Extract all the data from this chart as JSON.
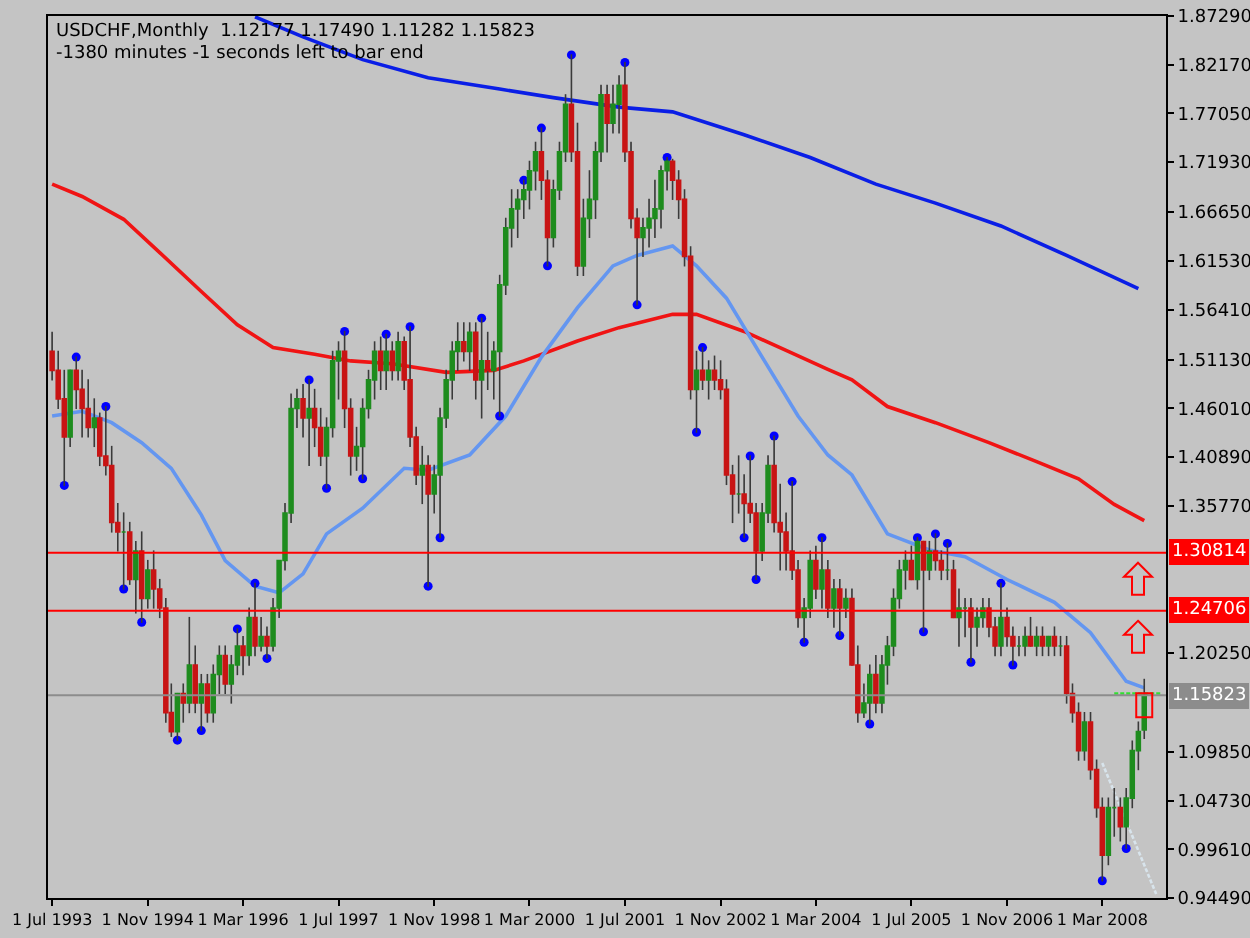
{
  "chart_data": {
    "type": "candlestick",
    "title": "USDCHF,Monthly  1.12177 1.17490 1.11282 1.15823",
    "subtitle": "-1380 minutes -1 seconds left to bar end",
    "x": [
      "1993-07",
      "1993-08",
      "1993-09",
      "1993-10",
      "1993-11",
      "1993-12",
      "1994-01",
      "1994-02",
      "1994-03",
      "1994-04",
      "1994-05",
      "1994-06",
      "1994-07",
      "1994-08",
      "1994-09",
      "1994-10",
      "1994-11",
      "1994-12",
      "1995-01",
      "1995-02",
      "1995-03",
      "1995-04",
      "1995-05",
      "1995-06",
      "1995-07",
      "1995-08",
      "1995-09",
      "1995-10",
      "1995-11",
      "1995-12",
      "1996-01",
      "1996-02",
      "1996-03",
      "1996-04",
      "1996-05",
      "1996-06",
      "1996-07",
      "1996-08",
      "1996-09",
      "1996-10",
      "1996-11",
      "1996-12",
      "1997-01",
      "1997-02",
      "1997-03",
      "1997-04",
      "1997-05",
      "1997-06",
      "1997-07",
      "1997-08",
      "1997-09",
      "1997-10",
      "1997-11",
      "1997-12",
      "1998-01",
      "1998-02",
      "1998-03",
      "1998-04",
      "1998-05",
      "1998-06",
      "1998-07",
      "1998-08",
      "1998-09",
      "1998-10",
      "1998-11",
      "1998-12",
      "1999-01",
      "1999-02",
      "1999-03",
      "1999-04",
      "1999-05",
      "1999-06",
      "1999-07",
      "1999-08",
      "1999-09",
      "1999-10",
      "1999-11",
      "1999-12",
      "2000-01",
      "2000-02",
      "2000-03",
      "2000-04",
      "2000-05",
      "2000-06",
      "2000-07",
      "2000-08",
      "2000-09",
      "2000-10",
      "2000-11",
      "2000-12",
      "2001-01",
      "2001-02",
      "2001-03",
      "2001-04",
      "2001-05",
      "2001-06",
      "2001-07",
      "2001-08",
      "2001-09",
      "2001-10",
      "2001-11",
      "2001-12",
      "2002-01",
      "2002-02",
      "2002-03",
      "2002-04",
      "2002-05",
      "2002-06",
      "2002-07",
      "2002-08",
      "2002-09",
      "2002-10",
      "2002-11",
      "2002-12",
      "2003-01",
      "2003-02",
      "2003-03",
      "2003-04",
      "2003-05",
      "2003-06",
      "2003-07",
      "2003-08",
      "2003-09",
      "2003-10",
      "2003-11",
      "2003-12",
      "2004-01",
      "2004-02",
      "2004-03",
      "2004-04",
      "2004-05",
      "2004-06",
      "2004-07",
      "2004-08",
      "2004-09",
      "2004-10",
      "2004-11",
      "2004-12",
      "2005-01",
      "2005-02",
      "2005-03",
      "2005-04",
      "2005-05",
      "2005-06",
      "2005-07",
      "2005-08",
      "2005-09",
      "2005-10",
      "2005-11",
      "2005-12",
      "2006-01",
      "2006-02",
      "2006-03",
      "2006-04",
      "2006-05",
      "2006-06",
      "2006-07",
      "2006-08",
      "2006-09",
      "2006-10",
      "2006-11",
      "2006-12",
      "2007-01",
      "2007-02",
      "2007-03",
      "2007-04",
      "2007-05",
      "2007-06",
      "2007-07",
      "2007-08",
      "2007-09",
      "2007-10",
      "2007-11",
      "2007-12",
      "2008-01",
      "2008-02",
      "2008-03",
      "2008-04",
      "2008-05",
      "2008-06",
      "2008-07",
      "2008-08",
      "2008-09",
      "2008-10"
    ],
    "ohlc": [
      [
        1.52,
        1.54,
        1.49,
        1.5
      ],
      [
        1.5,
        1.52,
        1.46,
        1.47
      ],
      [
        1.47,
        1.5,
        1.379,
        1.43
      ],
      [
        1.43,
        1.5,
        1.42,
        1.5
      ],
      [
        1.5,
        1.514,
        1.46,
        1.48
      ],
      [
        1.48,
        1.5,
        1.43,
        1.46
      ],
      [
        1.46,
        1.49,
        1.43,
        1.44
      ],
      [
        1.44,
        1.47,
        1.42,
        1.45
      ],
      [
        1.45,
        1.455,
        1.4,
        1.41
      ],
      [
        1.41,
        1.462,
        1.39,
        1.4
      ],
      [
        1.4,
        1.42,
        1.33,
        1.34
      ],
      [
        1.34,
        1.36,
        1.31,
        1.33
      ],
      [
        1.33,
        1.35,
        1.27,
        1.33
      ],
      [
        1.33,
        1.34,
        1.275,
        1.28
      ],
      [
        1.28,
        1.32,
        1.245,
        1.31
      ],
      [
        1.31,
        1.33,
        1.235,
        1.26
      ],
      [
        1.26,
        1.3,
        1.25,
        1.29
      ],
      [
        1.29,
        1.31,
        1.25,
        1.27
      ],
      [
        1.27,
        1.28,
        1.24,
        1.25
      ],
      [
        1.25,
        1.26,
        1.13,
        1.14
      ],
      [
        1.14,
        1.17,
        1.115,
        1.12
      ],
      [
        1.12,
        1.16,
        1.111,
        1.16
      ],
      [
        1.16,
        1.17,
        1.13,
        1.15
      ],
      [
        1.15,
        1.24,
        1.14,
        1.19
      ],
      [
        1.19,
        1.21,
        1.14,
        1.15
      ],
      [
        1.15,
        1.18,
        1.121,
        1.17
      ],
      [
        1.17,
        1.18,
        1.13,
        1.14
      ],
      [
        1.14,
        1.19,
        1.13,
        1.18
      ],
      [
        1.18,
        1.21,
        1.16,
        1.2
      ],
      [
        1.2,
        1.21,
        1.16,
        1.17
      ],
      [
        1.17,
        1.2,
        1.15,
        1.19
      ],
      [
        1.19,
        1.228,
        1.18,
        1.21
      ],
      [
        1.21,
        1.22,
        1.18,
        1.2
      ],
      [
        1.2,
        1.25,
        1.19,
        1.24
      ],
      [
        1.24,
        1.276,
        1.2,
        1.21
      ],
      [
        1.21,
        1.24,
        1.205,
        1.22
      ],
      [
        1.22,
        1.23,
        1.197,
        1.21
      ],
      [
        1.21,
        1.26,
        1.205,
        1.25
      ],
      [
        1.25,
        1.3,
        1.24,
        1.3
      ],
      [
        1.3,
        1.36,
        1.29,
        1.35
      ],
      [
        1.35,
        1.475,
        1.34,
        1.46
      ],
      [
        1.46,
        1.48,
        1.44,
        1.47
      ],
      [
        1.47,
        1.485,
        1.43,
        1.45
      ],
      [
        1.45,
        1.49,
        1.4,
        1.46
      ],
      [
        1.46,
        1.48,
        1.42,
        1.44
      ],
      [
        1.44,
        1.46,
        1.4,
        1.41
      ],
      [
        1.41,
        1.45,
        1.376,
        1.44
      ],
      [
        1.44,
        1.52,
        1.43,
        1.51
      ],
      [
        1.51,
        1.53,
        1.47,
        1.52
      ],
      [
        1.52,
        1.541,
        1.44,
        1.46
      ],
      [
        1.46,
        1.47,
        1.39,
        1.41
      ],
      [
        1.41,
        1.44,
        1.395,
        1.42
      ],
      [
        1.42,
        1.47,
        1.386,
        1.46
      ],
      [
        1.46,
        1.5,
        1.45,
        1.49
      ],
      [
        1.49,
        1.53,
        1.47,
        1.52
      ],
      [
        1.52,
        1.535,
        1.48,
        1.5
      ],
      [
        1.5,
        1.538,
        1.48,
        1.52
      ],
      [
        1.52,
        1.53,
        1.49,
        1.5
      ],
      [
        1.5,
        1.54,
        1.49,
        1.53
      ],
      [
        1.53,
        1.535,
        1.48,
        1.49
      ],
      [
        1.49,
        1.546,
        1.42,
        1.43
      ],
      [
        1.43,
        1.44,
        1.38,
        1.39
      ],
      [
        1.39,
        1.42,
        1.36,
        1.4
      ],
      [
        1.4,
        1.41,
        1.273,
        1.37
      ],
      [
        1.37,
        1.4,
        1.35,
        1.39
      ],
      [
        1.39,
        1.46,
        1.324,
        1.45
      ],
      [
        1.45,
        1.5,
        1.44,
        1.49
      ],
      [
        1.49,
        1.53,
        1.47,
        1.52
      ],
      [
        1.52,
        1.55,
        1.5,
        1.53
      ],
      [
        1.53,
        1.55,
        1.51,
        1.52
      ],
      [
        1.52,
        1.55,
        1.5,
        1.54
      ],
      [
        1.54,
        1.55,
        1.47,
        1.49
      ],
      [
        1.49,
        1.555,
        1.45,
        1.51
      ],
      [
        1.51,
        1.54,
        1.48,
        1.5
      ],
      [
        1.5,
        1.53,
        1.47,
        1.52
      ],
      [
        1.52,
        1.6,
        1.452,
        1.59
      ],
      [
        1.59,
        1.66,
        1.58,
        1.65
      ],
      [
        1.65,
        1.69,
        1.63,
        1.67
      ],
      [
        1.67,
        1.69,
        1.64,
        1.68
      ],
      [
        1.68,
        1.7,
        1.66,
        1.69
      ],
      [
        1.69,
        1.72,
        1.67,
        1.71
      ],
      [
        1.71,
        1.74,
        1.69,
        1.73
      ],
      [
        1.73,
        1.755,
        1.68,
        1.7
      ],
      [
        1.7,
        1.71,
        1.61,
        1.64
      ],
      [
        1.64,
        1.7,
        1.63,
        1.69
      ],
      [
        1.69,
        1.74,
        1.68,
        1.73
      ],
      [
        1.73,
        1.79,
        1.72,
        1.78
      ],
      [
        1.78,
        1.832,
        1.72,
        1.73
      ],
      [
        1.73,
        1.76,
        1.6,
        1.61
      ],
      [
        1.61,
        1.68,
        1.6,
        1.66
      ],
      [
        1.66,
        1.71,
        1.64,
        1.68
      ],
      [
        1.68,
        1.74,
        1.66,
        1.73
      ],
      [
        1.73,
        1.8,
        1.72,
        1.79
      ],
      [
        1.79,
        1.8,
        1.73,
        1.76
      ],
      [
        1.76,
        1.8,
        1.75,
        1.78
      ],
      [
        1.78,
        1.81,
        1.75,
        1.8
      ],
      [
        1.8,
        1.824,
        1.72,
        1.73
      ],
      [
        1.73,
        1.74,
        1.65,
        1.66
      ],
      [
        1.66,
        1.67,
        1.569,
        1.64
      ],
      [
        1.64,
        1.66,
        1.62,
        1.65
      ],
      [
        1.65,
        1.68,
        1.63,
        1.66
      ],
      [
        1.66,
        1.7,
        1.64,
        1.67
      ],
      [
        1.67,
        1.715,
        1.65,
        1.71
      ],
      [
        1.71,
        1.724,
        1.69,
        1.72
      ],
      [
        1.72,
        1.722,
        1.68,
        1.7
      ],
      [
        1.7,
        1.71,
        1.66,
        1.68
      ],
      [
        1.68,
        1.69,
        1.61,
        1.62
      ],
      [
        1.62,
        1.63,
        1.47,
        1.48
      ],
      [
        1.48,
        1.52,
        1.435,
        1.5
      ],
      [
        1.5,
        1.524,
        1.48,
        1.49
      ],
      [
        1.49,
        1.51,
        1.47,
        1.5
      ],
      [
        1.5,
        1.515,
        1.48,
        1.49
      ],
      [
        1.49,
        1.51,
        1.47,
        1.48
      ],
      [
        1.48,
        1.49,
        1.38,
        1.39
      ],
      [
        1.39,
        1.4,
        1.34,
        1.37
      ],
      [
        1.37,
        1.41,
        1.35,
        1.37
      ],
      [
        1.37,
        1.39,
        1.324,
        1.36
      ],
      [
        1.36,
        1.41,
        1.34,
        1.35
      ],
      [
        1.35,
        1.36,
        1.28,
        1.31
      ],
      [
        1.31,
        1.36,
        1.3,
        1.35
      ],
      [
        1.35,
        1.41,
        1.34,
        1.4
      ],
      [
        1.4,
        1.431,
        1.33,
        1.34
      ],
      [
        1.34,
        1.38,
        1.29,
        1.33
      ],
      [
        1.33,
        1.35,
        1.29,
        1.31
      ],
      [
        1.31,
        1.383,
        1.28,
        1.29
      ],
      [
        1.29,
        1.3,
        1.23,
        1.24
      ],
      [
        1.24,
        1.26,
        1.214,
        1.25
      ],
      [
        1.25,
        1.31,
        1.24,
        1.3
      ],
      [
        1.3,
        1.315,
        1.26,
        1.27
      ],
      [
        1.27,
        1.324,
        1.25,
        1.29
      ],
      [
        1.29,
        1.3,
        1.24,
        1.25
      ],
      [
        1.25,
        1.28,
        1.23,
        1.27
      ],
      [
        1.27,
        1.28,
        1.221,
        1.25
      ],
      [
        1.25,
        1.27,
        1.24,
        1.26
      ],
      [
        1.26,
        1.27,
        1.19,
        1.19
      ],
      [
        1.19,
        1.21,
        1.13,
        1.14
      ],
      [
        1.14,
        1.17,
        1.135,
        1.15
      ],
      [
        1.15,
        1.19,
        1.128,
        1.18
      ],
      [
        1.18,
        1.2,
        1.14,
        1.15
      ],
      [
        1.15,
        1.2,
        1.14,
        1.19
      ],
      [
        1.19,
        1.22,
        1.17,
        1.21
      ],
      [
        1.21,
        1.27,
        1.2,
        1.26
      ],
      [
        1.26,
        1.3,
        1.25,
        1.29
      ],
      [
        1.29,
        1.31,
        1.27,
        1.3
      ],
      [
        1.3,
        1.315,
        1.28,
        1.28
      ],
      [
        1.28,
        1.324,
        1.27,
        1.32
      ],
      [
        1.32,
        1.32,
        1.225,
        1.29
      ],
      [
        1.29,
        1.32,
        1.28,
        1.31
      ],
      [
        1.31,
        1.328,
        1.29,
        1.3
      ],
      [
        1.3,
        1.31,
        1.28,
        1.29
      ],
      [
        1.29,
        1.318,
        1.28,
        1.29
      ],
      [
        1.29,
        1.3,
        1.24,
        1.24
      ],
      [
        1.24,
        1.27,
        1.21,
        1.25
      ],
      [
        1.25,
        1.26,
        1.22,
        1.25
      ],
      [
        1.25,
        1.26,
        1.193,
        1.23
      ],
      [
        1.23,
        1.25,
        1.21,
        1.24
      ],
      [
        1.24,
        1.26,
        1.23,
        1.25
      ],
      [
        1.25,
        1.26,
        1.22,
        1.23
      ],
      [
        1.23,
        1.24,
        1.2,
        1.21
      ],
      [
        1.21,
        1.276,
        1.2,
        1.24
      ],
      [
        1.24,
        1.25,
        1.21,
        1.22
      ],
      [
        1.22,
        1.23,
        1.19,
        1.21
      ],
      [
        1.21,
        1.22,
        1.2,
        1.21
      ],
      [
        1.21,
        1.23,
        1.2,
        1.22
      ],
      [
        1.22,
        1.24,
        1.21,
        1.21
      ],
      [
        1.21,
        1.23,
        1.2,
        1.22
      ],
      [
        1.22,
        1.23,
        1.2,
        1.21
      ],
      [
        1.21,
        1.22,
        1.2,
        1.22
      ],
      [
        1.22,
        1.23,
        1.2,
        1.21
      ],
      [
        1.21,
        1.22,
        1.2,
        1.21
      ],
      [
        1.21,
        1.22,
        1.15,
        1.16
      ],
      [
        1.16,
        1.17,
        1.13,
        1.14
      ],
      [
        1.14,
        1.15,
        1.09,
        1.1
      ],
      [
        1.1,
        1.14,
        1.09,
        1.13
      ],
      [
        1.13,
        1.14,
        1.07,
        1.08
      ],
      [
        1.08,
        1.09,
        1.03,
        1.04
      ],
      [
        1.04,
        1.05,
        0.963,
        0.99
      ],
      [
        0.99,
        1.05,
        0.98,
        1.04
      ],
      [
        1.04,
        1.06,
        1.01,
        1.04
      ],
      [
        1.04,
        1.05,
        1.005,
        1.02
      ],
      [
        1.02,
        1.06,
        0.997,
        1.05
      ],
      [
        1.05,
        1.11,
        1.04,
        1.1
      ],
      [
        1.1,
        1.13,
        1.08,
        1.12
      ],
      [
        1.12177,
        1.1749,
        1.11282,
        1.15823
      ]
    ],
    "colors": [
      "#c81414",
      "#c81414",
      "#c81414",
      "#1e8c1e",
      "#c81414",
      "#c81414",
      "#c81414",
      "#1e8c1e",
      "#c81414",
      "#c81414",
      "#c81414",
      "#c81414",
      "#1e8c1e",
      "#c81414",
      "#1e8c1e",
      "#c81414",
      "#1e8c1e",
      "#c81414",
      "#c81414",
      "#c81414",
      "#c81414",
      "#1e8c1e",
      "#c81414",
      "#1e8c1e",
      "#c81414",
      "#1e8c1e",
      "#c81414",
      "#1e8c1e",
      "#1e8c1e",
      "#c81414",
      "#1e8c1e",
      "#1e8c1e",
      "#c81414",
      "#1e8c1e",
      "#c81414",
      "#1e8c1e",
      "#c81414",
      "#1e8c1e",
      "#1e8c1e",
      "#1e8c1e",
      "#1e8c1e",
      "#1e8c1e",
      "#c81414",
      "#1e8c1e",
      "#c81414",
      "#c81414",
      "#1e8c1e",
      "#1e8c1e",
      "#1e8c1e",
      "#c81414",
      "#c81414",
      "#1e8c1e",
      "#1e8c1e",
      "#1e8c1e",
      "#1e8c1e",
      "#c81414",
      "#1e8c1e",
      "#c81414",
      "#1e8c1e",
      "#c81414",
      "#c81414",
      "#c81414",
      "#1e8c1e",
      "#c81414",
      "#1e8c1e",
      "#1e8c1e",
      "#1e8c1e",
      "#1e8c1e",
      "#1e8c1e",
      "#c81414",
      "#1e8c1e",
      "#c81414",
      "#1e8c1e",
      "#c81414",
      "#1e8c1e",
      "#1e8c1e",
      "#1e8c1e",
      "#1e8c1e",
      "#1e8c1e",
      "#1e8c1e",
      "#1e8c1e",
      "#1e8c1e",
      "#c81414",
      "#c81414",
      "#1e8c1e",
      "#1e8c1e",
      "#1e8c1e",
      "#c81414",
      "#c81414",
      "#1e8c1e",
      "#1e8c1e",
      "#1e8c1e",
      "#1e8c1e",
      "#c81414",
      "#1e8c1e",
      "#1e8c1e",
      "#c81414",
      "#c81414",
      "#c81414",
      "#1e8c1e",
      "#1e8c1e",
      "#1e8c1e",
      "#1e8c1e",
      "#1e8c1e",
      "#c81414",
      "#c81414",
      "#c81414",
      "#c81414",
      "#1e8c1e",
      "#c81414",
      "#1e8c1e",
      "#c81414",
      "#c81414",
      "#c81414",
      "#c81414",
      "#1e8c1e",
      "#c81414",
      "#c81414",
      "#c81414",
      "#1e8c1e",
      "#1e8c1e",
      "#c81414",
      "#c81414",
      "#c81414",
      "#c81414",
      "#c81414",
      "#1e8c1e",
      "#1e8c1e",
      "#c81414",
      "#1e8c1e",
      "#c81414",
      "#1e8c1e",
      "#c81414",
      "#1e8c1e",
      "#c81414",
      "#c81414",
      "#1e8c1e",
      "#1e8c1e",
      "#c81414",
      "#1e8c1e",
      "#1e8c1e",
      "#1e8c1e",
      "#1e8c1e",
      "#1e8c1e",
      "#c81414",
      "#1e8c1e",
      "#c81414",
      "#1e8c1e",
      "#c81414",
      "#c81414",
      "#1e8c1e",
      "#c81414",
      "#1e8c1e",
      "#1e8c1e",
      "#c81414",
      "#1e8c1e",
      "#1e8c1e",
      "#c81414",
      "#c81414",
      "#1e8c1e",
      "#c81414",
      "#c81414",
      "#1e8c1e",
      "#1e8c1e",
      "#c81414",
      "#1e8c1e",
      "#c81414",
      "#1e8c1e",
      "#c81414",
      "#1e8c1e",
      "#c81414",
      "#c81414",
      "#c81414",
      "#1e8c1e",
      "#c81414",
      "#c81414",
      "#c81414",
      "#1e8c1e",
      "#1e8c1e",
      "#c81414",
      "#1e8c1e",
      "#1e8c1e",
      "#1e8c1e",
      "#1e8c1e"
    ],
    "series": [
      {
        "type": "line",
        "color": "#0a1ee6",
        "x": [
          "1996-05",
          "1997-01",
          "1997-11",
          "1998-10",
          "1999-10",
          "2000-07",
          "2001-06",
          "2002-03",
          "2003-03",
          "2004-02",
          "2005-01",
          "2005-11",
          "2006-10",
          "2007-09",
          "2008-09"
        ],
        "values": [
          1.872,
          1.851,
          1.827,
          1.808,
          1.796,
          1.787,
          1.777,
          1.772,
          1.748,
          1.724,
          1.696,
          1.676,
          1.652,
          1.621,
          1.586
        ]
      },
      {
        "type": "line",
        "color": "#f01414",
        "x": [
          "1993-07",
          "1993-12",
          "1994-07",
          "1995-01",
          "1995-08",
          "1996-02",
          "1996-08",
          "1997-03",
          "1997-09",
          "1998-04",
          "1999-01",
          "1999-09",
          "2000-02",
          "2000-11",
          "2001-06",
          "2002-03",
          "2002-07",
          "2003-03",
          "2003-10",
          "2004-05",
          "2004-09",
          "2005-03",
          "2005-11",
          "2006-08",
          "2007-04",
          "2007-11",
          "2008-05",
          "2008-10"
        ],
        "values": [
          1.696,
          1.683,
          1.659,
          1.624,
          1.583,
          1.548,
          1.524,
          1.517,
          1.51,
          1.507,
          1.498,
          1.5,
          1.51,
          1.531,
          1.545,
          1.559,
          1.559,
          1.541,
          1.521,
          1.501,
          1.49,
          1.462,
          1.445,
          1.424,
          1.404,
          1.386,
          1.359,
          1.342
        ]
      },
      {
        "type": "line",
        "color": "#6496f0",
        "x": [
          "1993-07",
          "1993-12",
          "1994-05",
          "1994-10",
          "1995-03",
          "1995-08",
          "1995-12",
          "1996-05",
          "1996-09",
          "1997-01",
          "1997-05",
          "1997-11",
          "1998-06",
          "1998-10",
          "1999-05",
          "1999-11",
          "2000-05",
          "2000-11",
          "2001-05",
          "2001-09",
          "2002-03",
          "2002-07",
          "2002-12",
          "2003-06",
          "2003-12",
          "2004-05",
          "2004-09",
          "2005-03",
          "2005-10",
          "2006-04",
          "2006-11",
          "2007-07",
          "2008-01",
          "2008-07",
          "2008-10"
        ],
        "values": [
          1.452,
          1.457,
          1.445,
          1.424,
          1.397,
          1.348,
          1.3,
          1.273,
          1.266,
          1.286,
          1.328,
          1.355,
          1.397,
          1.395,
          1.411,
          1.452,
          1.514,
          1.566,
          1.61,
          1.621,
          1.631,
          1.61,
          1.576,
          1.514,
          1.452,
          1.411,
          1.39,
          1.328,
          1.311,
          1.304,
          1.28,
          1.256,
          1.224,
          1.173,
          1.166
        ]
      },
      {
        "type": "line",
        "color": "#d8e4ec",
        "line_style": "dotted",
        "x": [
          "2008-03",
          "2008-12"
        ],
        "values": [
          1.087,
          0.949
        ]
      },
      {
        "type": "line",
        "color": "#30e030",
        "line_style": "dotted",
        "x": [
          "2008-05",
          "2009-01"
        ],
        "values": [
          1.16,
          1.16
        ]
      },
      {
        "type": "scatter",
        "color": "#0000ff",
        "marker": "circle",
        "x": [
          "1993-09",
          "1993-11",
          "1994-04",
          "1994-07",
          "1994-10",
          "1995-04",
          "1995-08",
          "1996-02",
          "1996-05",
          "1996-07",
          "1997-02",
          "1997-05",
          "1997-08",
          "1997-11",
          "1998-03",
          "1998-07",
          "1998-10",
          "1998-12",
          "1999-07",
          "1999-10",
          "2000-02",
          "2000-05",
          "2000-06",
          "2000-10",
          "2001-07",
          "2001-09",
          "2002-02",
          "2002-07",
          "2002-08",
          "2003-03",
          "2003-04",
          "2003-05",
          "2003-08",
          "2003-11",
          "2004-01",
          "2004-04",
          "2004-07",
          "2004-12",
          "2005-08",
          "2005-09",
          "2005-11",
          "2006-01",
          "2006-05",
          "2006-10",
          "2006-12",
          "2008-03",
          "2008-07"
        ],
        "values": [
          1.379,
          1.514,
          1.462,
          1.27,
          1.235,
          1.111,
          1.121,
          1.228,
          1.276,
          1.197,
          1.49,
          1.376,
          1.541,
          1.386,
          1.538,
          1.546,
          1.273,
          1.324,
          1.555,
          1.452,
          1.7,
          1.755,
          1.61,
          1.832,
          1.824,
          1.569,
          1.724,
          1.435,
          1.524,
          1.324,
          1.41,
          1.28,
          1.431,
          1.383,
          1.214,
          1.324,
          1.221,
          1.128,
          1.324,
          1.225,
          1.328,
          1.318,
          1.193,
          1.276,
          1.19,
          0.963,
          0.997
        ]
      }
    ],
    "ref_lines": [
      {
        "axis": "y",
        "value": 1.30814,
        "label": "1.30814",
        "color": "#ff0000"
      },
      {
        "axis": "y",
        "value": 1.24706,
        "label": "1.24706",
        "color": "#ff0000"
      },
      {
        "axis": "y",
        "value": 1.15823,
        "label": "1.15823",
        "color": "#8c8c8c"
      }
    ],
    "xlim": [
      "1993-06-10",
      "2009-01-20"
    ],
    "xticks": [
      {
        "value": "1993-07",
        "label": "1 Jul 1993"
      },
      {
        "value": "1994-11",
        "label": "1 Nov 1994"
      },
      {
        "value": "1996-03",
        "label": "1 Mar 1996"
      },
      {
        "value": "1997-07",
        "label": "1 Jul 1997"
      },
      {
        "value": "1998-11",
        "label": "1 Nov 1998"
      },
      {
        "value": "2000-03",
        "label": "1 Mar 2000"
      },
      {
        "value": "2001-07",
        "label": "1 Jul 2001"
      },
      {
        "value": "2002-11",
        "label": "1 Nov 2002"
      },
      {
        "value": "2004-03",
        "label": "1 Mar 2004"
      },
      {
        "value": "2005-07",
        "label": "1 Jul 2005"
      },
      {
        "value": "2006-11",
        "label": "1 Nov 2006"
      },
      {
        "value": "2008-03",
        "label": "1 Mar 2008"
      }
    ],
    "ylim": [
      0.9449,
      1.8729
    ],
    "yticks": [
      {
        "value": 1.8729,
        "label": "1.87290"
      },
      {
        "value": 1.8217,
        "label": "1.82170"
      },
      {
        "value": 1.7705,
        "label": "1.77050"
      },
      {
        "value": 1.7193,
        "label": "1.71930"
      },
      {
        "value": 1.6665,
        "label": "1.66650"
      },
      {
        "value": 1.6153,
        "label": "1.61530"
      },
      {
        "value": 1.5641,
        "label": "1.56410"
      },
      {
        "value": 1.5113,
        "label": "1.51130"
      },
      {
        "value": 1.4601,
        "label": "1.46010"
      },
      {
        "value": 1.4089,
        "label": "1.40890"
      },
      {
        "value": 1.3577,
        "label": "1.35770"
      },
      {
        "value": 1.2025,
        "label": "1.20250"
      },
      {
        "value": 1.0985,
        "label": "1.09850"
      },
      {
        "value": 1.0473,
        "label": "1.04730"
      },
      {
        "value": 0.9961,
        "label": "0.99610"
      },
      {
        "value": 0.9449,
        "label": "0.94490"
      }
    ],
    "grid": false
  }
}
